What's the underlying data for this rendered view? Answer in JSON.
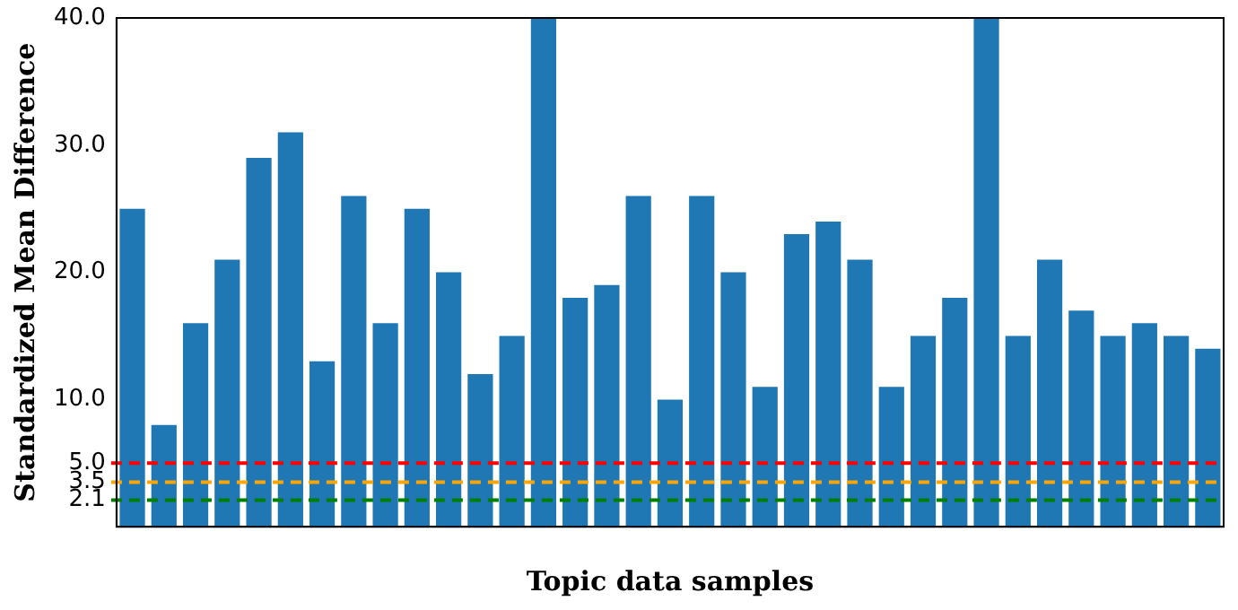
{
  "chart_data": {
    "type": "bar",
    "xlabel": "Topic data samples",
    "ylabel": "Standardized Mean Difference",
    "categories": [
      null,
      null,
      null,
      null,
      null,
      null,
      null,
      null,
      null,
      null,
      null,
      null,
      null,
      null,
      null,
      null,
      null,
      null,
      null,
      null,
      null,
      null,
      null,
      null,
      null,
      null,
      null,
      null,
      null,
      null,
      null,
      null,
      null,
      null,
      null
    ],
    "series": [
      {
        "color": "#1f77b4",
        "values": [
          25,
          8,
          16,
          21,
          29,
          31,
          13,
          26,
          16,
          25,
          20,
          12,
          15,
          40,
          18,
          19,
          26,
          10,
          26,
          20,
          11,
          23,
          24,
          21,
          11,
          15,
          18,
          40,
          15,
          21,
          17,
          15,
          16,
          15,
          14
        ]
      }
    ],
    "ylim": [
      0,
      40
    ],
    "yticks": [
      {
        "value": 2.1,
        "label": "2.1"
      },
      {
        "value": 3.5,
        "label": "3.5"
      },
      {
        "value": 5,
        "label": "5.0"
      },
      {
        "value": 10,
        "label": "10.0"
      },
      {
        "value": 20,
        "label": "20.0"
      },
      {
        "value": 30,
        "label": "30.0"
      },
      {
        "value": 40,
        "label": "40.0"
      }
    ],
    "ref_lines": [
      {
        "axis": "y",
        "value": 5,
        "color": "#ff0000",
        "line_style": "dashed"
      },
      {
        "axis": "y",
        "value": 3.5,
        "color": "#ffa500",
        "line_style": "dashed"
      },
      {
        "axis": "y",
        "value": 2.1,
        "color": "#008000",
        "line_style": "dashed"
      }
    ],
    "grid": false,
    "legend": false
  }
}
